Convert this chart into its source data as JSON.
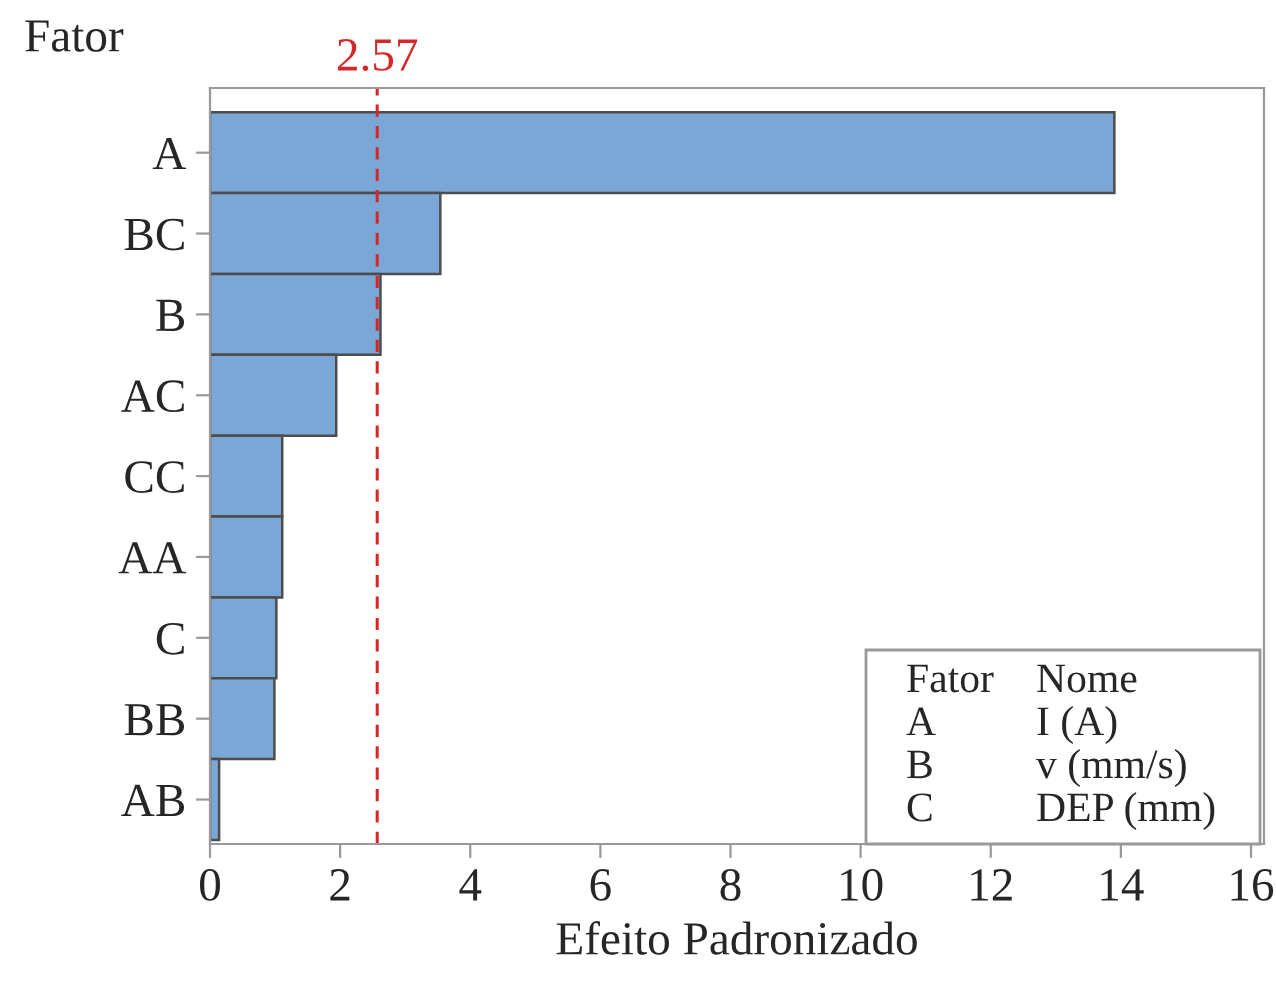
{
  "chart_data": {
    "type": "bar",
    "orientation": "horizontal",
    "xlabel": "Efeito Padronizado",
    "ylabel": "Fator",
    "categories": [
      "A",
      "BC",
      "B",
      "AC",
      "CC",
      "AA",
      "C",
      "BB",
      "AB"
    ],
    "values": [
      13.9,
      3.54,
      2.62,
      1.94,
      1.11,
      1.11,
      1.02,
      0.99,
      0.14
    ],
    "color": "#7ba7d7",
    "xlim": [
      0,
      16.2
    ],
    "xticks": [
      0,
      2,
      4,
      6,
      8,
      10,
      12,
      14,
      16
    ],
    "ref_lines": [
      {
        "axis": "x",
        "value": 2.57,
        "label": "2.57",
        "color": "#d62728",
        "line_style": "dashed"
      }
    ],
    "annotations": [
      "Fator",
      "Nome",
      "A",
      "I (A)",
      "B",
      "v (mm/s)",
      "C",
      "DEP (mm)"
    ],
    "grid": false
  }
}
